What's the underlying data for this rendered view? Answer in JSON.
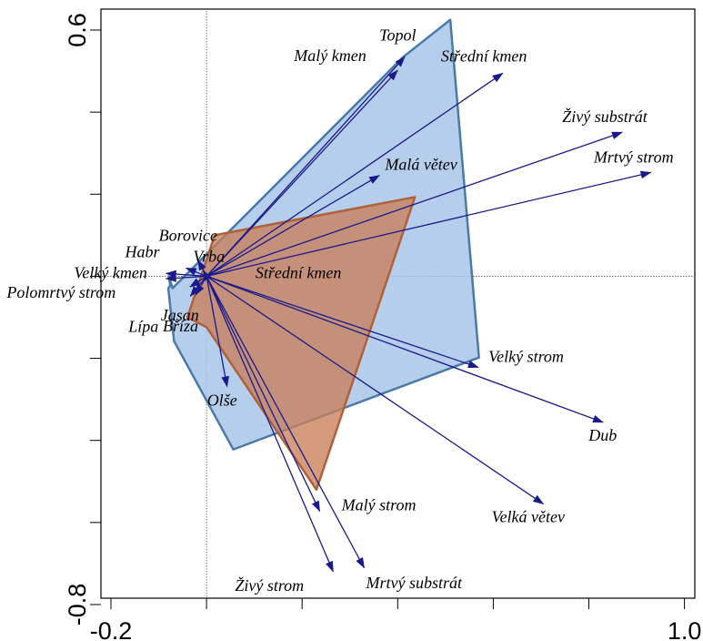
{
  "chart_data": {
    "type": "biplot",
    "xlim": [
      -0.2,
      1.0
    ],
    "ylim": [
      -0.8,
      0.6
    ],
    "x_tick_labels": [
      "-0.2",
      "1.0"
    ],
    "y_tick_labels": [
      "0.6",
      "-0.8"
    ],
    "x_minor_ticks": [
      -0.2,
      0.0,
      0.2,
      0.4,
      0.6,
      0.8,
      1.0
    ],
    "y_minor_ticks": [
      -0.8,
      -0.6,
      -0.4,
      -0.2,
      0.0,
      0.2,
      0.4,
      0.6
    ],
    "reference_lines": {
      "x": 0.0,
      "y": 0.0
    },
    "origin": [
      0.0,
      0.0
    ],
    "arrow_color": "#1a1a8c",
    "polygons": [
      {
        "fill": "#a8c6e8",
        "stroke": "#4a7aa8",
        "points": [
          [
            -0.079,
            0.0
          ],
          [
            -0.076,
            -0.022
          ],
          [
            -0.08,
            -0.03
          ],
          [
            -0.068,
            -0.158
          ],
          [
            0.056,
            -0.422
          ],
          [
            0.57,
            -0.198
          ],
          [
            0.51,
            0.625
          ],
          [
            0.412,
            0.535
          ],
          [
            -0.071,
            -0.029
          ]
        ]
      },
      {
        "fill": "#c87f58",
        "stroke": "#b0603a",
        "points": [
          [
            -0.04,
            -0.1
          ],
          [
            0.017,
            0.1
          ],
          [
            0.436,
            0.193
          ],
          [
            0.23,
            -0.52
          ],
          [
            0.0,
            -0.124
          ]
        ]
      }
    ],
    "vectors": [
      {
        "label": "Topol",
        "x": 0.415,
        "y": 0.535
      },
      {
        "label": "Malý kmen",
        "x": 0.4,
        "y": 0.502
      },
      {
        "label": "Střední kmen",
        "x": 0.62,
        "y": 0.495
      },
      {
        "label": "Živý substrát",
        "x": 0.87,
        "y": 0.351
      },
      {
        "label": "Mrtvý strom",
        "x": 0.93,
        "y": 0.253
      },
      {
        "label": "Malá větev",
        "x": 0.362,
        "y": 0.246
      },
      {
        "label": "Velký strom",
        "x": 0.569,
        "y": -0.222
      },
      {
        "label": "Dub",
        "x": 0.83,
        "y": -0.356
      },
      {
        "label": "Velká větev",
        "x": 0.705,
        "y": -0.555
      },
      {
        "label": "Malý strom",
        "x": 0.237,
        "y": -0.573
      },
      {
        "label": "Mrtvý substrát",
        "x": 0.33,
        "y": -0.711
      },
      {
        "label": "Živý strom",
        "x": 0.265,
        "y": -0.72
      },
      {
        "label": "Borovice",
        "x": -0.018,
        "y": 0.04
      },
      {
        "label": "Habr",
        "x": -0.043,
        "y": 0.02
      },
      {
        "label": "Vrba",
        "x": -0.007,
        "y": 0.015
      },
      {
        "label": "Velký kmen",
        "x": -0.085,
        "y": 0.007
      },
      {
        "label": "Polomrtvý strom",
        "x": -0.085,
        "y": -0.006
      },
      {
        "label": "Jasan",
        "x": -0.035,
        "y": -0.026
      },
      {
        "label": "Lípa",
        "x": -0.034,
        "y": -0.049
      },
      {
        "label": "Bříza",
        "x": -0.023,
        "y": -0.046
      },
      {
        "label": "Olše",
        "x": 0.043,
        "y": -0.269
      }
    ],
    "annotations": [
      {
        "label": "Střední kmen",
        "x": 0.11,
        "y": -0.005
      }
    ]
  }
}
